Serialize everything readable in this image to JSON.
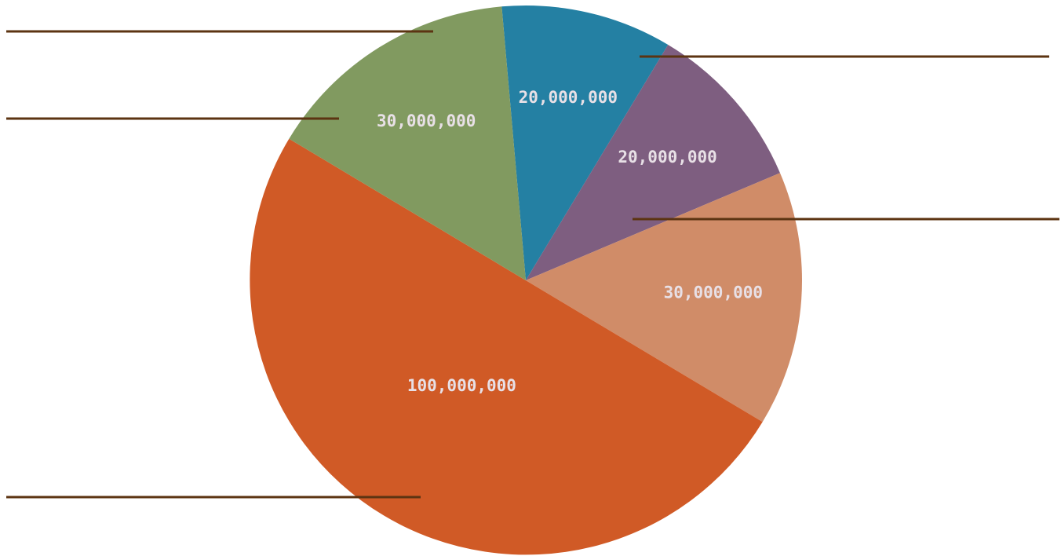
{
  "chart_data": {
    "type": "pie",
    "title": "",
    "slices": [
      {
        "value": 20000000,
        "label": "20,000,000",
        "color": "#2480a3"
      },
      {
        "value": 20000000,
        "label": "20,000,000",
        "color": "#7e5e80"
      },
      {
        "value": 30000000,
        "label": "30,000,000",
        "color": "#d08c68"
      },
      {
        "value": 100000000,
        "label": "100,000,000",
        "color": "#d05a26"
      },
      {
        "value": 30000000,
        "label": "30,000,000",
        "color": "#819a60"
      }
    ],
    "leader_line_color": "#5c3412",
    "legend": "none"
  }
}
